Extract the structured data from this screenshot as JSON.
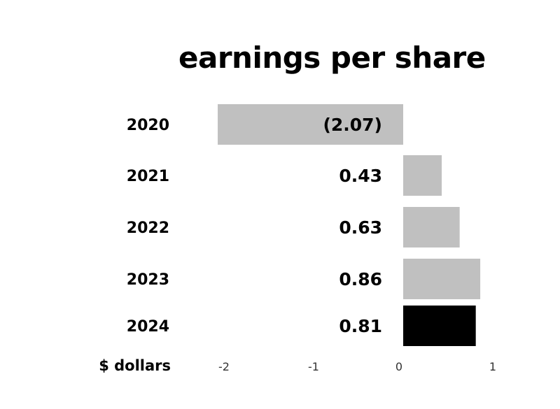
{
  "chart_data": {
    "type": "bar",
    "orientation": "horizontal",
    "title": "earnings per share",
    "xlabel": "$ dollars",
    "ylabel": "",
    "categories": [
      "2020",
      "2021",
      "2022",
      "2023",
      "2024"
    ],
    "values": [
      -2.07,
      0.43,
      0.63,
      0.86,
      0.81
    ],
    "value_labels": [
      "(2.07)",
      "0.43",
      "0.63",
      "0.86",
      "0.81"
    ],
    "xlim": [
      -2,
      1
    ],
    "xticks": [
      -2,
      -1,
      0,
      1
    ],
    "xtick_labels": [
      "-2",
      "-1",
      "0",
      "1"
    ],
    "grid": false,
    "legend": "none",
    "colors": {
      "default_bar": "#c0c0c0",
      "highlight_bar": "#000000",
      "text": "#000000"
    },
    "highlight_category": "2024"
  }
}
